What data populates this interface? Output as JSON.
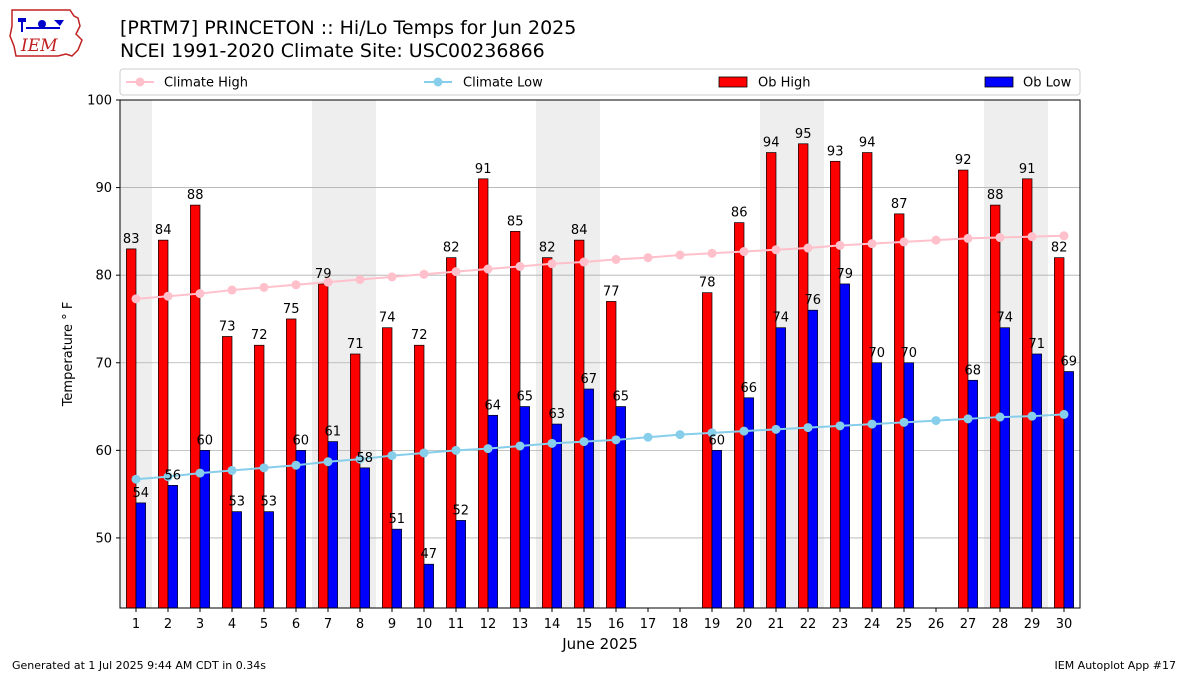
{
  "header": {
    "title_line1": "[PRTM7] PRINCETON :: Hi/Lo Temps for Jun 2025",
    "title_line2": "NCEI 1991-2020 Climate Site: USC00236866"
  },
  "logo": {
    "text": "IEM"
  },
  "footer": {
    "left": "Generated at 1 Jul 2025 9:44 AM CDT in 0.34s",
    "right": "IEM Autoplot App #17"
  },
  "colors": {
    "ob_high": "#ff0000",
    "ob_low": "#0000ff",
    "climate_high": "#ffc0cb",
    "climate_low": "#87ceeb",
    "weekend_band": "#eeeeee",
    "grid": "#b0b0b0"
  },
  "chart_data": {
    "type": "bar",
    "xlabel": "June 2025",
    "ylabel": "Temperature ° F",
    "ylim": [
      42,
      100
    ],
    "yticks": [
      50,
      60,
      70,
      80,
      90,
      100
    ],
    "grid": "horizontal",
    "legend_position": "top",
    "days": [
      1,
      2,
      3,
      4,
      5,
      6,
      7,
      8,
      9,
      10,
      11,
      12,
      13,
      14,
      15,
      16,
      17,
      18,
      19,
      20,
      21,
      22,
      23,
      24,
      25,
      26,
      27,
      28,
      29,
      30
    ],
    "weekend_day_pairs": [
      [
        1
      ],
      [
        7,
        8
      ],
      [
        14,
        15
      ],
      [
        21,
        22
      ],
      [
        28,
        29
      ]
    ],
    "series": [
      {
        "name": "Ob High",
        "kind": "bar",
        "values": [
          83,
          84,
          88,
          73,
          72,
          75,
          79,
          71,
          74,
          72,
          82,
          91,
          85,
          82,
          84,
          77,
          null,
          null,
          78,
          86,
          94,
          95,
          93,
          94,
          87,
          null,
          92,
          88,
          91,
          82
        ]
      },
      {
        "name": "Ob Low",
        "kind": "bar",
        "values": [
          54,
          56,
          60,
          53,
          53,
          60,
          61,
          58,
          51,
          47,
          52,
          64,
          65,
          63,
          67,
          65,
          null,
          null,
          60,
          66,
          74,
          76,
          79,
          70,
          70,
          null,
          68,
          74,
          71,
          69
        ]
      },
      {
        "name": "Climate High",
        "kind": "line",
        "values": [
          77.3,
          77.6,
          77.9,
          78.3,
          78.6,
          78.9,
          79.2,
          79.5,
          79.8,
          80.1,
          80.4,
          80.7,
          81.0,
          81.3,
          81.5,
          81.8,
          82.0,
          82.3,
          82.5,
          82.7,
          82.9,
          83.1,
          83.4,
          83.6,
          83.8,
          84.0,
          84.2,
          84.3,
          84.4,
          84.5
        ]
      },
      {
        "name": "Climate Low",
        "kind": "line",
        "values": [
          56.7,
          57.0,
          57.4,
          57.7,
          58.0,
          58.3,
          58.7,
          59.0,
          59.4,
          59.7,
          60.0,
          60.2,
          60.5,
          60.8,
          61.0,
          61.2,
          61.5,
          61.8,
          62.0,
          62.2,
          62.4,
          62.6,
          62.8,
          63.0,
          63.2,
          63.4,
          63.6,
          63.8,
          63.9,
          64.1
        ]
      }
    ]
  }
}
